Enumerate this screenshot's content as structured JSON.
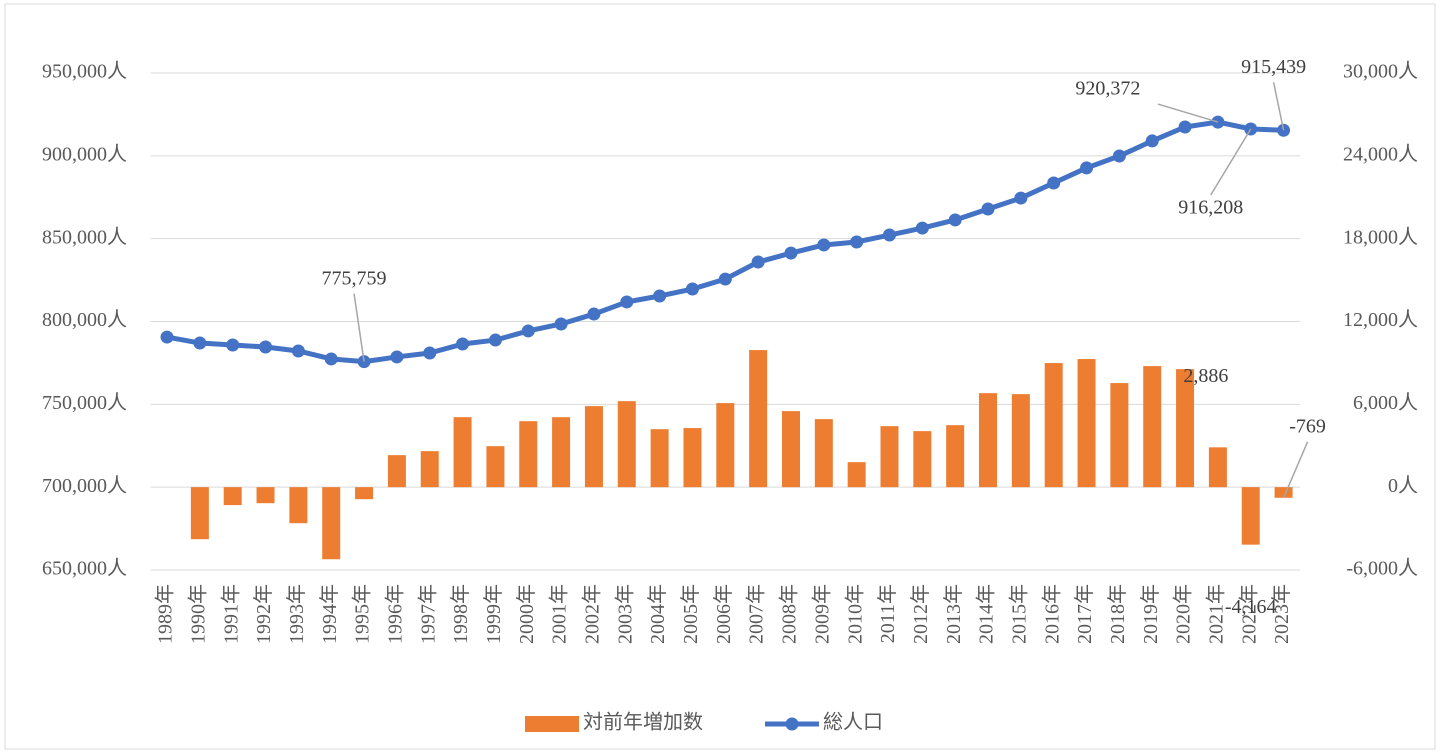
{
  "chart_data": {
    "type": "bar-line",
    "categories": [
      "1989年",
      "1990年",
      "1991年",
      "1992年",
      "1993年",
      "1994年",
      "1995年",
      "1996年",
      "1997年",
      "1998年",
      "1999年",
      "2000年",
      "2001年",
      "2002年",
      "2003年",
      "2004年",
      "2005年",
      "2006年",
      "2007年",
      "2008年",
      "2009年",
      "2010年",
      "2011年",
      "2012年",
      "2013年",
      "2014年",
      "2015年",
      "2016年",
      "2017年",
      "2018年",
      "2019年",
      "2020年",
      "2021年",
      "2022年",
      "2023年"
    ],
    "series": [
      {
        "name": "対前年増加数",
        "type": "bar",
        "axis": "y2",
        "color": "#ed7d31",
        "values": [
          null,
          -3770,
          -1300,
          -1160,
          -2610,
          -5220,
          -870,
          2320,
          2610,
          5070,
          2970,
          4780,
          5070,
          5870,
          6230,
          4200,
          4280,
          6090,
          9930,
          5510,
          4930,
          1810,
          4420,
          4060,
          4490,
          6810,
          6740,
          8990,
          9280,
          7540,
          8770,
          8550,
          2886,
          -4164,
          -769
        ],
        "value_labels": [
          null,
          null,
          null,
          null,
          null,
          null,
          null,
          null,
          null,
          null,
          null,
          null,
          null,
          null,
          null,
          null,
          null,
          null,
          null,
          null,
          null,
          null,
          null,
          null,
          null,
          null,
          null,
          null,
          null,
          null,
          null,
          null,
          "2,886",
          "-4,164",
          "-769"
        ]
      },
      {
        "name": "総人口",
        "type": "line",
        "axis": "y",
        "color": "#4472c4",
        "values": [
          790600,
          787000,
          785800,
          784600,
          782200,
          777400,
          775759,
          778600,
          781000,
          786400,
          788800,
          794300,
          798500,
          804500,
          811800,
          815400,
          819600,
          825600,
          835900,
          841300,
          846200,
          848000,
          852200,
          856400,
          861300,
          867900,
          874500,
          883600,
          892700,
          899900,
          909000,
          917400,
          920372,
          916208,
          915439
        ],
        "value_labels": [
          null,
          null,
          null,
          null,
          null,
          null,
          "775,759",
          null,
          null,
          null,
          null,
          null,
          null,
          null,
          null,
          null,
          null,
          null,
          null,
          null,
          null,
          null,
          null,
          null,
          null,
          null,
          null,
          null,
          null,
          null,
          null,
          null,
          "920,372",
          "916,208",
          "915,439"
        ]
      }
    ],
    "ylim": [
      650000,
      950000
    ],
    "yticks": [
      {
        "value": 650000,
        "label": "650,000人"
      },
      {
        "value": 700000,
        "label": "700,000人"
      },
      {
        "value": 750000,
        "label": "750,000人"
      },
      {
        "value": 800000,
        "label": "800,000人"
      },
      {
        "value": 850000,
        "label": "850,000人"
      },
      {
        "value": 900000,
        "label": "900,000人"
      },
      {
        "value": 950000,
        "label": "950,000人"
      }
    ],
    "y2lim": [
      -6000,
      30000
    ],
    "y2ticks": [
      {
        "value": -6000,
        "label": "-6,000人"
      },
      {
        "value": 0,
        "label": "0人"
      },
      {
        "value": 6000,
        "label": "6,000人"
      },
      {
        "value": 12000,
        "label": "12,000人"
      },
      {
        "value": 18000,
        "label": "18,000人"
      },
      {
        "value": 24000,
        "label": "24,000人"
      },
      {
        "value": 30000,
        "label": "30,000人"
      }
    ],
    "grid": true,
    "legend": "bottom"
  }
}
